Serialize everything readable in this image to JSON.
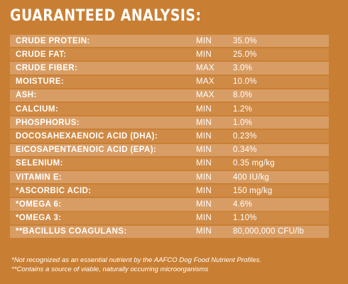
{
  "title": "GUARANTEED ANALYSIS:",
  "colors": {
    "background": "#c97f33",
    "row_light": "#d89d65",
    "row_dark": "#cf8a45",
    "text": "#ffffff"
  },
  "rows": [
    {
      "name": "CRUDE PROTEIN:",
      "type": "MIN",
      "value": "35.0%"
    },
    {
      "name": "CRUDE FAT:",
      "type": "MIN",
      "value": "25.0%"
    },
    {
      "name": "CRUDE FIBER:",
      "type": "MAX",
      "value": "3.0%"
    },
    {
      "name": "MOISTURE:",
      "type": "MAX",
      "value": "10.0%"
    },
    {
      "name": "ASH:",
      "type": "MAX",
      "value": "8.0%"
    },
    {
      "name": "CALCIUM:",
      "type": "MIN",
      "value": "1.2%"
    },
    {
      "name": "PHOSPHORUS:",
      "type": "MIN",
      "value": "1.0%"
    },
    {
      "name": "DOCOSAHEXAENOIC ACID (DHA):",
      "type": "MIN",
      "value": "0.23%"
    },
    {
      "name": "EICOSAPENTAENOIC ACID (EPA):",
      "type": "MIN",
      "value": "0.34%"
    },
    {
      "name": "SELENIUM:",
      "type": "MIN",
      "value": "0.35 mg/kg"
    },
    {
      "name": "VITAMIN E:",
      "type": "MIN",
      "value": "400 IU/kg"
    },
    {
      "name": "*ASCORBIC ACID:",
      "type": "MIN",
      "value": "150 mg/kg"
    },
    {
      "name": "*OMEGA 6:",
      "type": "MIN",
      "value": "4.6%"
    },
    {
      "name": "*OMEGA 3:",
      "type": "MIN",
      "value": "1.10%"
    },
    {
      "name": "**BACILLUS COAGULANS:",
      "type": "MIN",
      "value": "80,000,000 CFU/lb"
    }
  ],
  "notes": [
    "*Not recognized as an essential nutrient by the AAFCO Dog Food Nutrient Profiles.",
    "**Contains a source of viable, naturally occurring microorganisms"
  ]
}
